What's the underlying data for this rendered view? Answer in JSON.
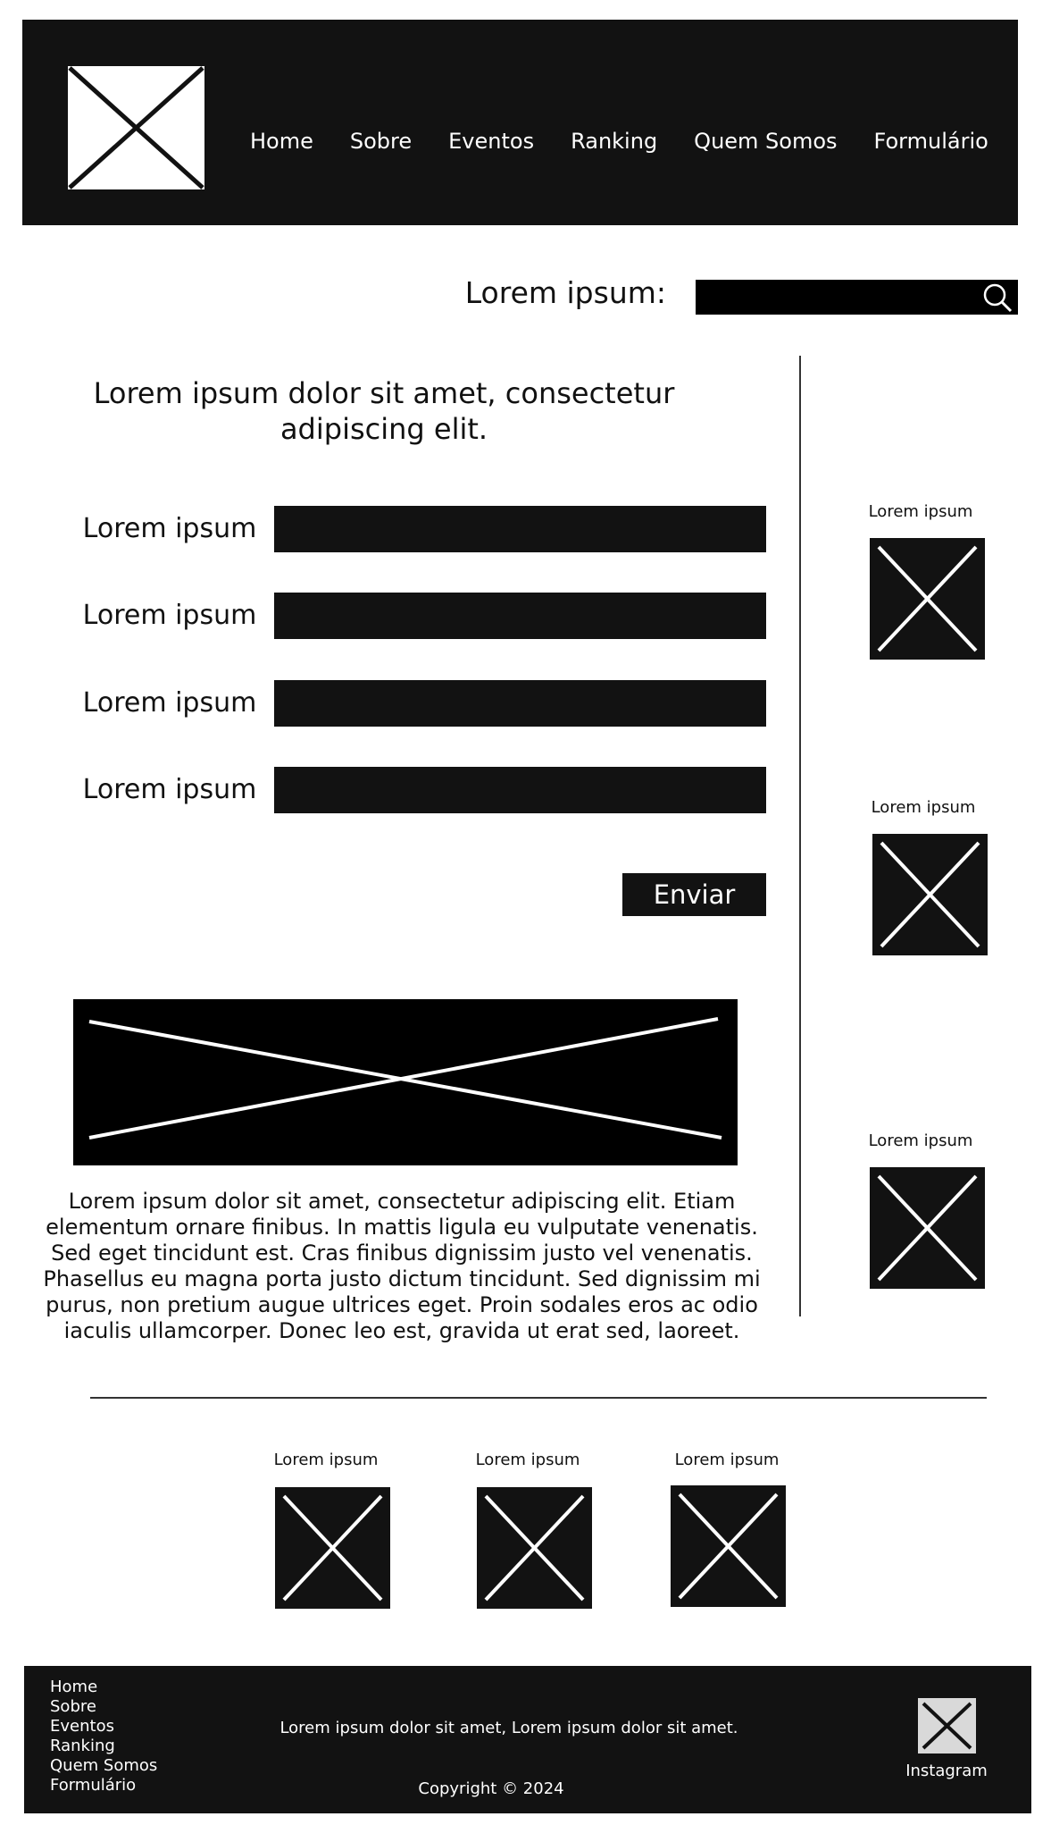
{
  "header": {
    "nav": [
      "Home",
      "Sobre",
      "Eventos",
      "Ranking",
      "Quem Somos",
      "Formulário"
    ]
  },
  "search": {
    "label": "Lorem ipsum:",
    "placeholder": ""
  },
  "form": {
    "title": "Lorem ipsum dolor sit amet, consectetur adipiscing elit.",
    "fields": [
      {
        "label": "Lorem ipsum",
        "value": ""
      },
      {
        "label": "Lorem ipsum",
        "value": ""
      },
      {
        "label": "Lorem ipsum",
        "value": ""
      },
      {
        "label": "Lorem ipsum",
        "value": ""
      }
    ],
    "submit": "Enviar"
  },
  "article": {
    "paragraph": "Lorem ipsum dolor sit amet, consectetur adipiscing elit. Etiam elementum ornare finibus. In mattis ligula eu vulputate venenatis. Sed eget tincidunt est. Cras finibus dignissim justo vel venenatis. Phasellus eu magna porta justo dictum tincidunt. Sed dignissim mi purus, non pretium augue ultrices eget. Proin sodales eros ac odio iaculis ullamcorper. Donec leo est, gravida ut erat sed, laoreet."
  },
  "sidebar": {
    "items": [
      {
        "label": "Lorem ipsum"
      },
      {
        "label": "Lorem ipsum"
      },
      {
        "label": "Lorem ipsum"
      }
    ]
  },
  "gallery": {
    "items": [
      {
        "label": "Lorem ipsum"
      },
      {
        "label": "Lorem ipsum"
      },
      {
        "label": "Lorem ipsum"
      }
    ]
  },
  "footer": {
    "links": [
      "Home",
      "Sobre",
      "Eventos",
      "Ranking",
      "Quem Somos",
      "Formulário"
    ],
    "text": "Lorem ipsum dolor sit amet, Lorem ipsum dolor sit amet.",
    "copyright": "Copyright © 2024",
    "social_label": "Instagram"
  },
  "colors": {
    "dark": "#121212",
    "light": "#ffffff"
  }
}
